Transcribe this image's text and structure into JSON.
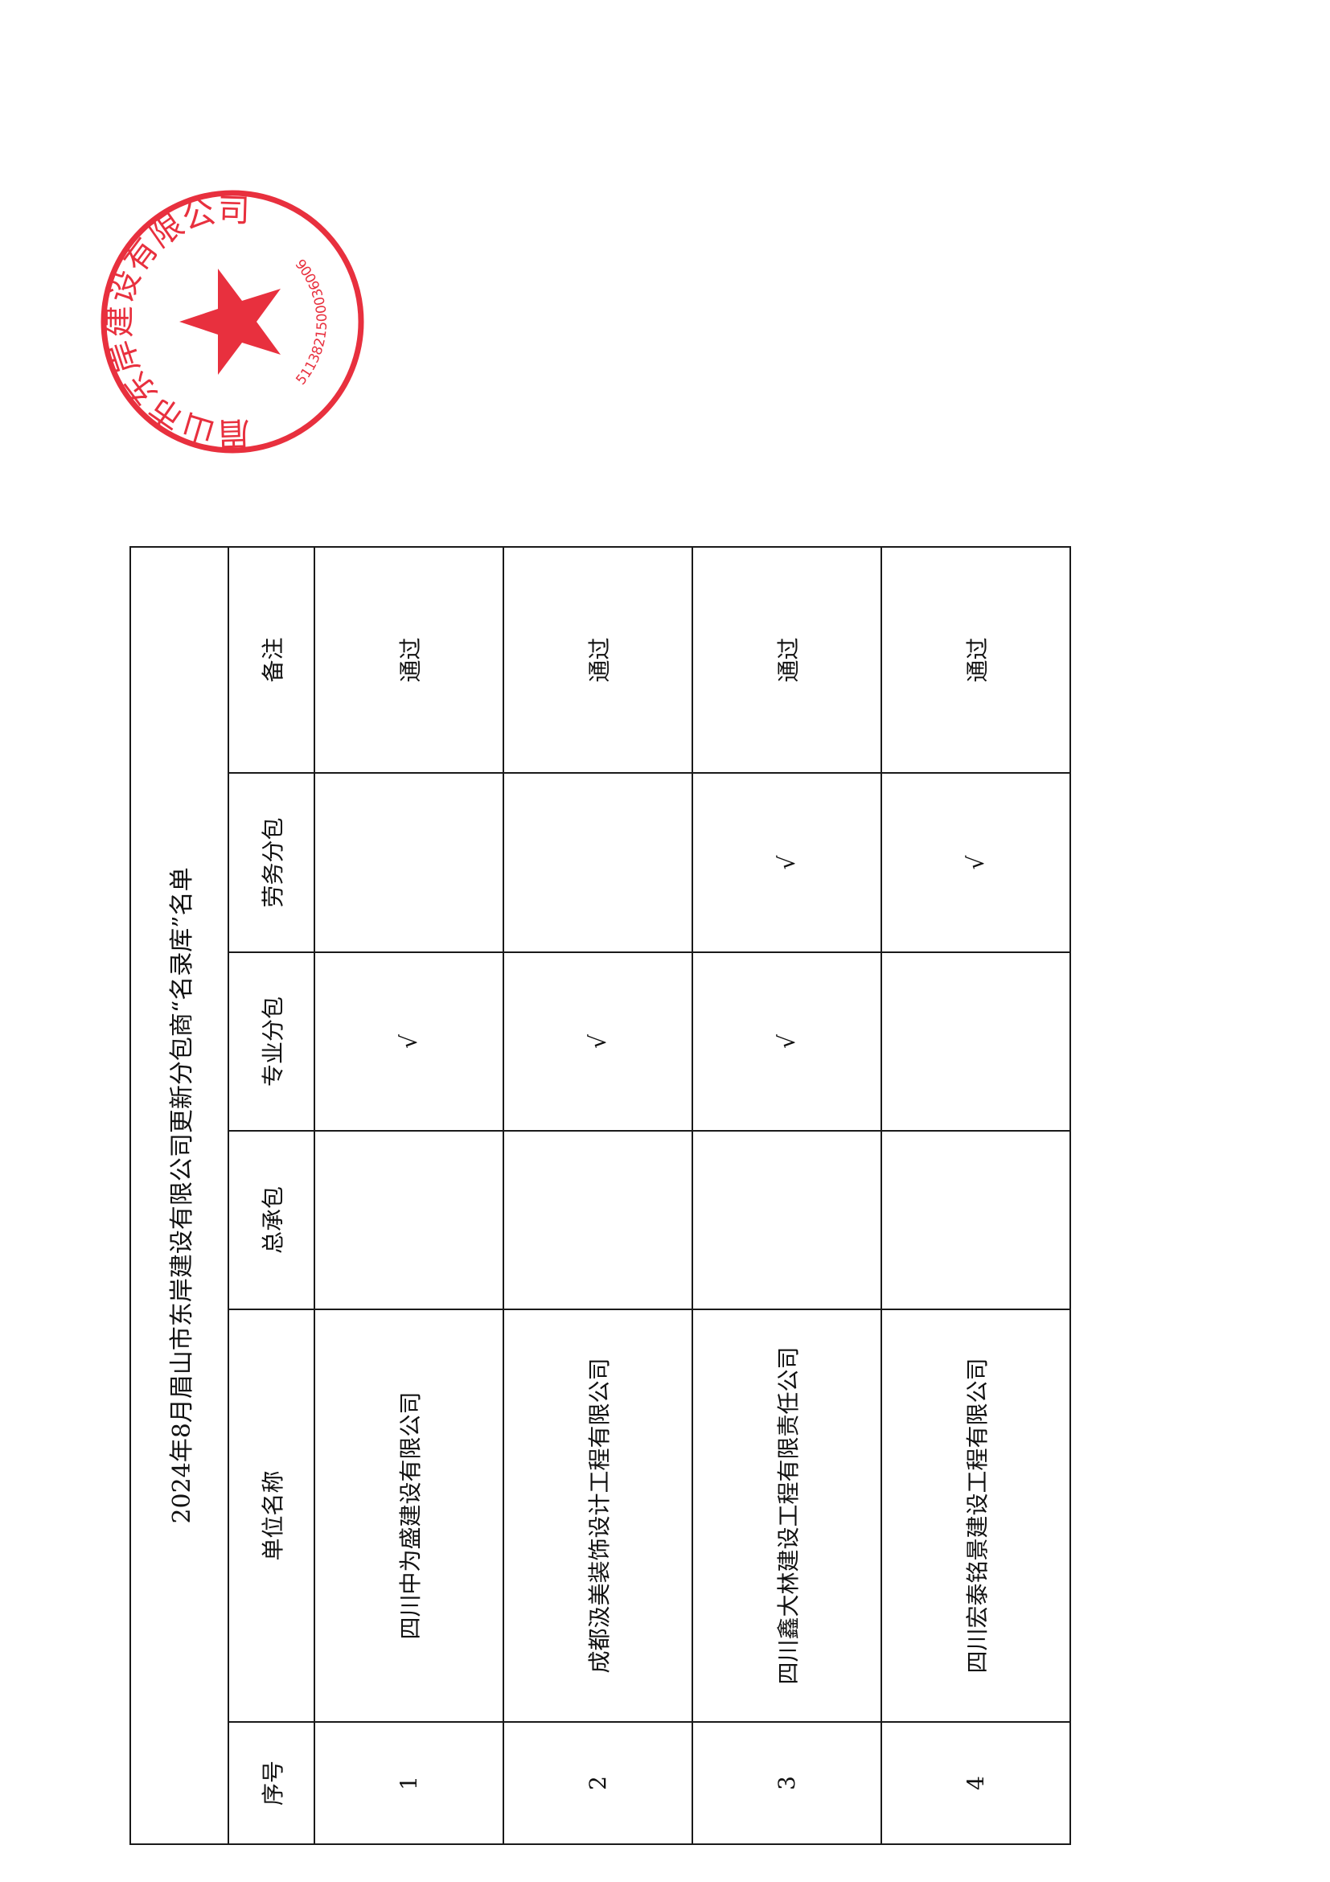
{
  "title": "2024年8月眉山市东岸建设有限公司更新分包商“名录库”名单",
  "headers": [
    "序号",
    "单位名称",
    "总承包",
    "专业分包",
    "劳务分包",
    "备注"
  ],
  "rows": [
    {
      "no": "1",
      "name": "四川中为盛建设有限公司",
      "general": "",
      "specialty": "√",
      "labor": "",
      "remark": "通过"
    },
    {
      "no": "2",
      "name": "成都汲美装饰设计工程有限公司",
      "general": "",
      "specialty": "√",
      "labor": "",
      "remark": "通过"
    },
    {
      "no": "3",
      "name": "四川鑫大林建设工程有限责任公司",
      "general": "",
      "specialty": "√",
      "labor": "√",
      "remark": "通过"
    },
    {
      "no": "4",
      "name": "四川宏泰铭景建设工程有限公司",
      "general": "",
      "specialty": "",
      "labor": "√",
      "remark": "通过"
    }
  ],
  "stamp": {
    "text": "眉山市东岸建设有限公司",
    "code": "5113821500036006",
    "color": "#e8303e"
  }
}
